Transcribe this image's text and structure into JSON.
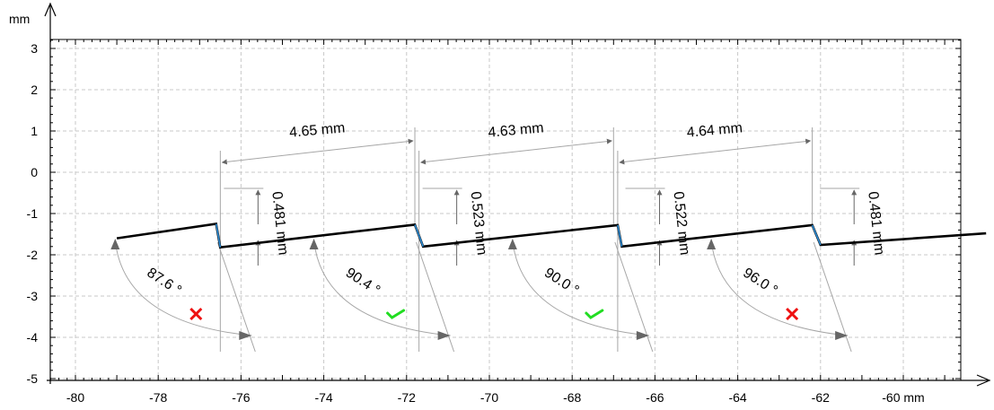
{
  "chart_data": {
    "type": "line",
    "title": "",
    "xlabel": "mm",
    "ylabel": "mm",
    "xlim": [
      -81,
      -57.5
    ],
    "ylim": [
      -5,
      3.3
    ],
    "x_ticks": [
      {
        "value": -80,
        "label": "-80"
      },
      {
        "value": -78,
        "label": "-78"
      },
      {
        "value": -76,
        "label": "-76"
      },
      {
        "value": -74,
        "label": "-74"
      },
      {
        "value": -72,
        "label": "-72"
      },
      {
        "value": -70,
        "label": "-70"
      },
      {
        "value": -68,
        "label": "-68"
      },
      {
        "value": -66,
        "label": "-66"
      },
      {
        "value": -64,
        "label": "-64"
      },
      {
        "value": -62,
        "label": "-62"
      },
      {
        "value": -60,
        "label": "-60 mm"
      }
    ],
    "y_ticks": [
      {
        "value": 3,
        "label": "3"
      },
      {
        "value": 2,
        "label": "2"
      },
      {
        "value": 1,
        "label": "1"
      },
      {
        "value": 0,
        "label": "0"
      },
      {
        "value": -1,
        "label": "-1"
      },
      {
        "value": -2,
        "label": "-2"
      },
      {
        "value": -3,
        "label": "-3"
      },
      {
        "value": -4,
        "label": "-4"
      },
      {
        "value": -5,
        "label": "-5"
      }
    ],
    "grid": true,
    "series": [
      {
        "x": [
          -79.0,
          -76.6,
          -76.5,
          -71.8,
          -71.6,
          -66.9,
          -66.8,
          -62.2,
          -62.0,
          -58.0
        ],
        "y": [
          -1.6,
          -1.25,
          -1.82,
          -1.27,
          -1.8,
          -1.28,
          -1.8,
          -1.28,
          -1.76,
          -1.48
        ]
      }
    ],
    "pitch_measurements": [
      {
        "label": "4.65 mm",
        "x1": -76.5,
        "x2": -71.8
      },
      {
        "label": "4.63 mm",
        "x1": -71.7,
        "x2": -67.0
      },
      {
        "label": "4.64 mm",
        "x1": -66.9,
        "x2": -62.2
      }
    ],
    "step_measurements": [
      {
        "label": "0.481 mm",
        "x": -76.5
      },
      {
        "label": "0.523 mm",
        "x": -71.7
      },
      {
        "label": "0.522 mm",
        "x": -66.8
      },
      {
        "label": "0.481 mm",
        "x": -62.1
      }
    ],
    "angle_measurements": [
      {
        "label": "87.6 °",
        "status": "fail",
        "x": -77.0
      },
      {
        "label": "90.4 °",
        "status": "pass",
        "x": -72.2
      },
      {
        "label": "90.0 °",
        "status": "pass",
        "x": -67.4
      },
      {
        "label": "96.0 °",
        "status": "fail",
        "x": -62.6
      }
    ],
    "status_colors": {
      "pass": "#22dd22",
      "fail": "#ee1111"
    },
    "colors": {
      "profile": "#000000",
      "measure": "#a6a6a6",
      "arrow": "#666666",
      "grid": "#c8c8c8",
      "step": "#2e8fd8"
    }
  }
}
